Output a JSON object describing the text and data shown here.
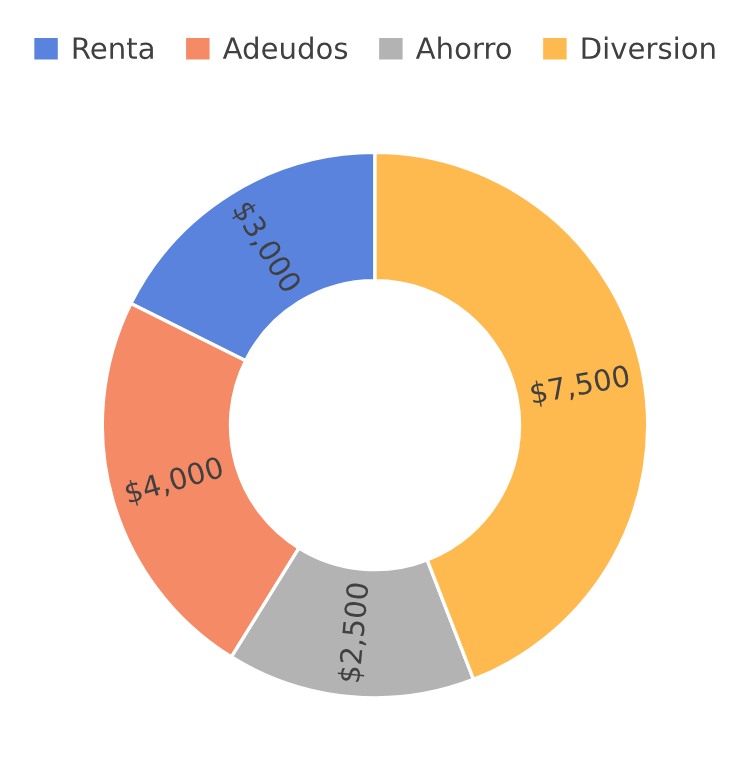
{
  "chart_data": {
    "type": "donut",
    "categories": [
      "Renta",
      "Adeudos",
      "Ahorro",
      "Diversion"
    ],
    "values": [
      3000,
      4000,
      2500,
      7500
    ],
    "colors": [
      "#5a83de",
      "#f58a66",
      "#b3b3b3",
      "#ffba4f"
    ],
    "value_labels": [
      "$3,000",
      "$4,000",
      "$2,500",
      "$7,500"
    ],
    "legend": "top"
  }
}
